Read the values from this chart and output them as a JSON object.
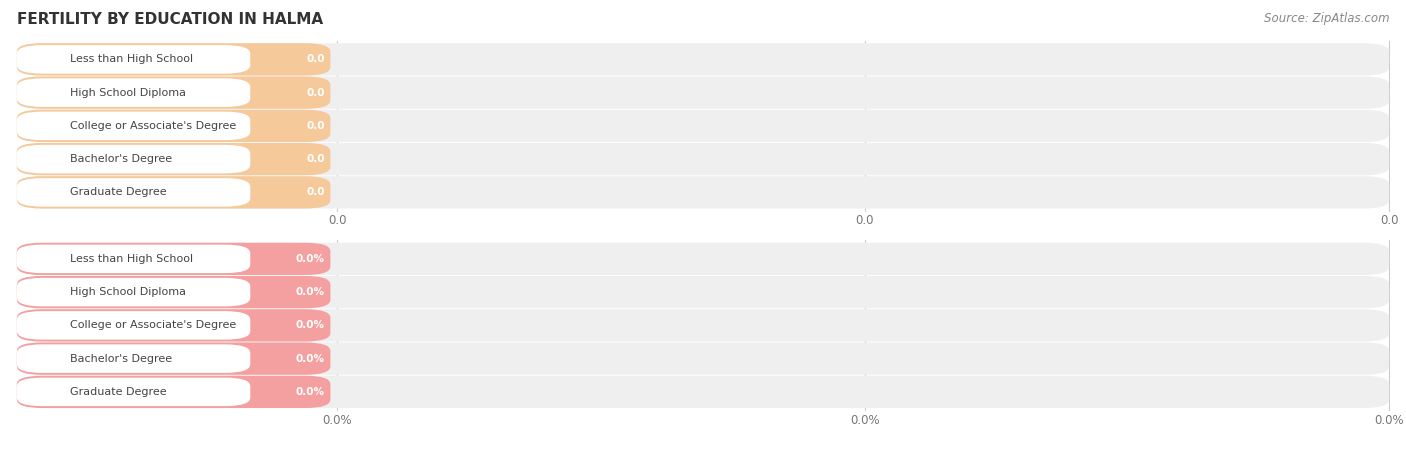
{
  "title": "FERTILITY BY EDUCATION IN HALMA",
  "source_text": "Source: ZipAtlas.com",
  "categories": [
    "Less than High School",
    "High School Diploma",
    "College or Associate's Degree",
    "Bachelor's Degree",
    "Graduate Degree"
  ],
  "values_top": [
    0.0,
    0.0,
    0.0,
    0.0,
    0.0
  ],
  "values_bottom": [
    0.0,
    0.0,
    0.0,
    0.0,
    0.0
  ],
  "bar_color_top": "#f5c99a",
  "bar_bg_color": "#efefef",
  "bar_color_bottom": "#f5a0a0",
  "title_color": "#333333",
  "tick_label_color": "#777777",
  "source_color": "#888888",
  "top_tick_label": "0.0",
  "bottom_tick_label": "0.0%",
  "figure_width": 14.06,
  "figure_height": 4.75,
  "dpi": 100
}
